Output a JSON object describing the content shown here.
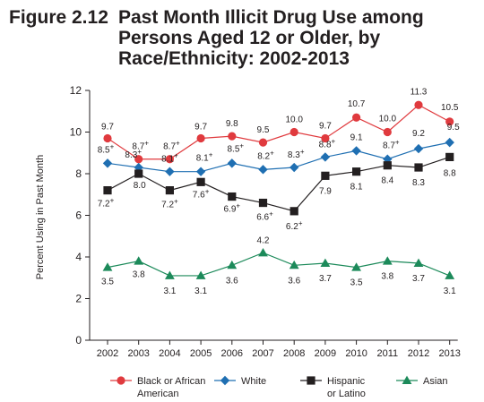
{
  "figure": {
    "number": "Figure 2.12",
    "title_line1": "Past Month Illicit Drug Use among",
    "title_line2": "Persons Aged 12 or Older, by",
    "title_line3": "Race/Ethnicity: 2002-2013"
  },
  "chart_data": {
    "type": "line",
    "title": "Past Month Illicit Drug Use among Persons Aged 12 or Older, by Race/Ethnicity: 2002-2013",
    "xlabel": "",
    "ylabel": "Percent Using in Past Month",
    "ylim": [
      0,
      12
    ],
    "yticks": [
      "0",
      "2",
      "4",
      "6",
      "8",
      "10",
      "12"
    ],
    "categories": [
      "2002",
      "2003",
      "2004",
      "2005",
      "2006",
      "2007",
      "2008",
      "2009",
      "2010",
      "2011",
      "2012",
      "2013"
    ],
    "grid": false,
    "legend_position": "bottom",
    "series": [
      {
        "name": "Black or African American",
        "legend_lines": [
          "Black or African",
          "American"
        ],
        "color": "#e03a3e",
        "marker": "circle",
        "values": [
          9.7,
          8.7,
          8.7,
          9.7,
          9.8,
          9.5,
          10.0,
          9.7,
          10.7,
          10.0,
          11.3,
          10.5
        ],
        "labels": [
          "9.7",
          "8.7+",
          "8.7+",
          "9.7",
          "9.8",
          "9.5",
          "10.0",
          "9.7",
          "10.7",
          "10.0",
          "11.3",
          "10.5"
        ]
      },
      {
        "name": "White",
        "legend_lines": [
          "White"
        ],
        "color": "#1f6fb2",
        "marker": "diamond",
        "values": [
          8.5,
          8.3,
          8.1,
          8.1,
          8.5,
          8.2,
          8.3,
          8.8,
          9.1,
          8.7,
          9.2,
          9.5
        ],
        "labels": [
          "8.5+",
          "8.3+",
          "8.1+",
          "8.1+",
          "8.5+",
          "8.2+",
          "8.3+",
          "8.8+",
          "9.1",
          "8.7+",
          "9.2",
          "9.5"
        ]
      },
      {
        "name": "Hispanic or Latino",
        "legend_lines": [
          "Hispanic",
          "or Latino"
        ],
        "color": "#231f20",
        "marker": "square",
        "values": [
          7.2,
          8.0,
          7.2,
          7.6,
          6.9,
          6.6,
          6.2,
          7.9,
          8.1,
          8.4,
          8.3,
          8.8
        ],
        "labels": [
          "7.2+",
          "8.0",
          "7.2+",
          "7.6+",
          "6.9+",
          "6.6+",
          "6.2+",
          "7.9",
          "8.1",
          "8.4",
          "8.3",
          "8.8"
        ]
      },
      {
        "name": "Asian",
        "legend_lines": [
          "Asian"
        ],
        "color": "#1c8a5a",
        "marker": "triangle",
        "values": [
          3.5,
          3.8,
          3.1,
          3.1,
          3.6,
          4.2,
          3.6,
          3.7,
          3.5,
          3.8,
          3.7,
          3.1
        ],
        "labels": [
          "3.5",
          "3.8",
          "3.1",
          "3.1",
          "3.6",
          "4.2",
          "3.6",
          "3.7",
          "3.5",
          "3.8",
          "3.7",
          "3.1"
        ]
      }
    ]
  }
}
